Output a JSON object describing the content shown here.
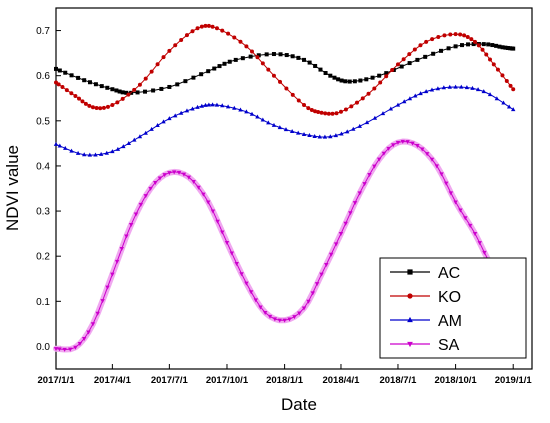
{
  "chart_data": {
    "type": "line",
    "xlabel": "Date",
    "ylabel": "NDVI value",
    "x_ticks": [
      "2017/1/1",
      "2017/4/1",
      "2017/7/1",
      "2017/10/1",
      "2018/1/1",
      "2018/4/1",
      "2018/7/1",
      "2018/10/1",
      "2019/1/1"
    ],
    "x_range": [
      "2017/1/1",
      "2019/1/31"
    ],
    "ylim": [
      -0.05,
      0.75
    ],
    "y_ticks": [
      "0.0",
      "0.1",
      "0.2",
      "0.3",
      "0.4",
      "0.5",
      "0.6",
      "0.7"
    ],
    "legend_position": "bottom-right",
    "series": [
      {
        "name": "AC",
        "color": "#000000",
        "marker": "square",
        "x": [
          "2017/1/1",
          "2017/2/15",
          "2017/4/1",
          "2017/5/1",
          "2017/7/1",
          "2017/9/1",
          "2017/10/15",
          "2017/12/15",
          "2018/2/1",
          "2018/3/15",
          "2018/4/15",
          "2018/6/1",
          "2018/8/1",
          "2018/10/1",
          "2018/11/15",
          "2018/12/15",
          "2019/1/1"
        ],
        "values": [
          0.615,
          0.59,
          0.57,
          0.562,
          0.575,
          0.61,
          0.635,
          0.648,
          0.635,
          0.6,
          0.587,
          0.6,
          0.635,
          0.665,
          0.67,
          0.663,
          0.66
        ]
      },
      {
        "name": "KO",
        "color": "#c00000",
        "marker": "circle",
        "x": [
          "2017/1/1",
          "2017/2/1",
          "2017/3/1",
          "2017/4/1",
          "2017/5/15",
          "2017/7/1",
          "2017/8/15",
          "2017/9/15",
          "2017/11/1",
          "2017/12/15",
          "2018/2/1",
          "2018/3/1",
          "2018/4/1",
          "2018/5/15",
          "2018/7/1",
          "2018/8/15",
          "2018/10/1",
          "2018/11/1",
          "2018/12/1",
          "2019/1/1"
        ],
        "values": [
          0.585,
          0.555,
          0.53,
          0.535,
          0.58,
          0.655,
          0.705,
          0.705,
          0.665,
          0.6,
          0.535,
          0.518,
          0.52,
          0.56,
          0.625,
          0.675,
          0.692,
          0.675,
          0.625,
          0.57
        ]
      },
      {
        "name": "AM",
        "color": "#0000cc",
        "marker": "triangle-up",
        "x": [
          "2017/1/1",
          "2017/2/15",
          "2017/4/1",
          "2017/5/15",
          "2017/7/1",
          "2017/8/15",
          "2017/9/15",
          "2017/11/1",
          "2017/12/15",
          "2018/2/1",
          "2018/3/15",
          "2018/5/1",
          "2018/7/1",
          "2018/8/15",
          "2018/10/1",
          "2018/11/15",
          "2019/1/1"
        ],
        "values": [
          0.448,
          0.425,
          0.432,
          0.465,
          0.505,
          0.53,
          0.535,
          0.52,
          0.49,
          0.47,
          0.465,
          0.488,
          0.535,
          0.565,
          0.575,
          0.565,
          0.525
        ]
      },
      {
        "name": "SA",
        "color": "#cc00cc",
        "marker": "triangle-down",
        "x": [
          "2017/1/1",
          "2017/2/1",
          "2017/3/1",
          "2017/4/1",
          "2017/5/1",
          "2017/6/1",
          "2017/7/1",
          "2017/8/1",
          "2017/9/1",
          "2017/10/1",
          "2017/11/1",
          "2017/12/1",
          "2018/1/1",
          "2018/2/1",
          "2018/3/1",
          "2018/4/1",
          "2018/5/1",
          "2018/6/1",
          "2018/7/1",
          "2018/8/1",
          "2018/9/1",
          "2018/10/1",
          "2018/11/1",
          "2018/12/1",
          "2019/1/1"
        ],
        "values": [
          -0.005,
          -0.002,
          0.05,
          0.16,
          0.27,
          0.35,
          0.385,
          0.375,
          0.32,
          0.23,
          0.14,
          0.075,
          0.058,
          0.085,
          0.16,
          0.25,
          0.34,
          0.415,
          0.452,
          0.445,
          0.4,
          0.32,
          0.25,
          0.17,
          0.13
        ]
      }
    ]
  }
}
